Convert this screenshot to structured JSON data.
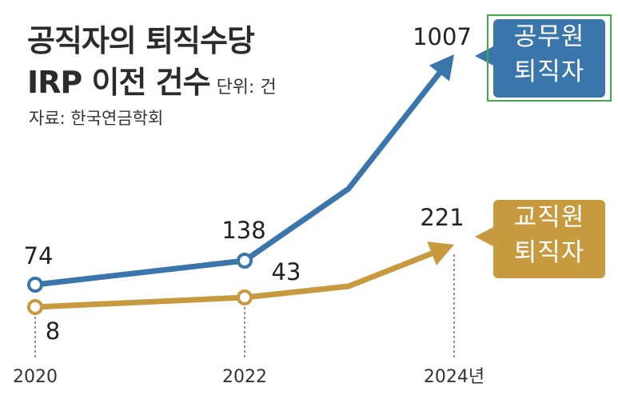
{
  "title_line1": "공직자의 퇴직수당",
  "title_line2": "IRP 이전 건수",
  "unit": "단위: 건",
  "source": "자료: 한국연금학회",
  "legend": [
    {
      "line1": "공무원",
      "line2": "퇴직자",
      "color": "#3a76ab"
    },
    {
      "line1": "교직원",
      "line2": "퇴직자",
      "color": "#c79a3f"
    }
  ],
  "chart_data": {
    "type": "line",
    "title": "공직자의 퇴직수당 IRP 이전 건수",
    "x": [
      2020,
      2022,
      2024
    ],
    "x_tick_labels": [
      "2020",
      "2022",
      "2024년"
    ],
    "series": [
      {
        "name": "공무원 퇴직자",
        "values": [
          74,
          138,
          1007
        ],
        "color": "#3a76ab"
      },
      {
        "name": "교직원 퇴직자",
        "values": [
          8,
          43,
          221
        ],
        "color": "#c79a3f"
      }
    ],
    "data_labels": {
      "공무원 퇴직자": [
        "74",
        "138",
        "1007"
      ],
      "교직원 퇴직자": [
        "8",
        "43",
        "221"
      ]
    },
    "grid": false,
    "legend_position": "right"
  }
}
